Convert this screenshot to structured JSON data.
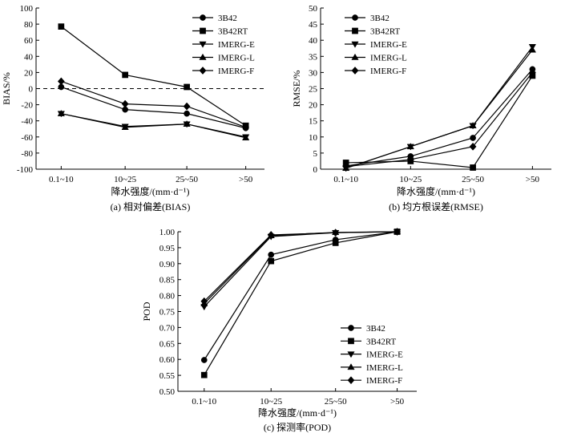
{
  "chart_data": [
    {
      "type": "line",
      "caption": "(a) 相对偏差(BIAS)",
      "xlabel": "降水强度/(mm·d⁻¹)",
      "ylabel": "BIAS/%",
      "categories": [
        "0.1~10",
        "10~25",
        "25~50",
        ">50"
      ],
      "ylim": [
        -100,
        100
      ],
      "yticks": [
        "100",
        "80",
        "60",
        "40",
        "20",
        "0",
        "-20",
        "-40",
        "-60",
        "-80",
        "-100"
      ],
      "legend_position": "top-right",
      "reference_line": 0,
      "series": [
        {
          "name": "3B42",
          "marker": "circle",
          "values": [
            2,
            -26,
            -31,
            -49
          ]
        },
        {
          "name": "3B42RT",
          "marker": "square",
          "values": [
            77,
            17,
            2,
            -46
          ]
        },
        {
          "name": "IMERG-E",
          "marker": "triangle-down",
          "values": [
            -31,
            -47,
            -44,
            -60
          ]
        },
        {
          "name": "IMERG-L",
          "marker": "triangle-up",
          "values": [
            -31,
            -48,
            -44,
            -61
          ]
        },
        {
          "name": "IMERG-F",
          "marker": "diamond",
          "values": [
            9,
            -19,
            -22,
            -48
          ]
        }
      ]
    },
    {
      "type": "line",
      "caption": "(b) 均方根误差(RMSE)",
      "xlabel": "降水强度/(mm·d⁻¹)",
      "ylabel": "RMSE/%",
      "categories": [
        "0.1~10",
        "10~25",
        "25~50",
        ">50"
      ],
      "ylim": [
        0,
        50
      ],
      "yticks": [
        "0",
        "5",
        "10",
        "15",
        "20",
        "25",
        "30",
        "35",
        "40",
        "45",
        "50"
      ],
      "legend_position": "top-left",
      "series": [
        {
          "name": "3B42",
          "marker": "circle",
          "values": [
            1,
            4,
            9.7,
            31
          ]
        },
        {
          "name": "3B42RT",
          "marker": "square",
          "values": [
            2,
            2.5,
            0.5,
            29
          ]
        },
        {
          "name": "IMERG-E",
          "marker": "triangle-down",
          "values": [
            0.3,
            7,
            13.5,
            38
          ]
        },
        {
          "name": "IMERG-L",
          "marker": "triangle-up",
          "values": [
            0.3,
            7,
            13.5,
            37
          ]
        },
        {
          "name": "IMERG-F",
          "marker": "diamond",
          "values": [
            0.8,
            3,
            7,
            30
          ]
        }
      ]
    },
    {
      "type": "line",
      "caption": "(c) 探测率(POD)",
      "xlabel": "降水强度/(mm·d⁻¹)",
      "ylabel": "POD",
      "categories": [
        "0.1~10",
        "10~25",
        "25~50",
        ">50"
      ],
      "ylim": [
        0.5,
        1.0
      ],
      "yticks": [
        "0.50",
        "0.55",
        "0.60",
        "0.65",
        "0.70",
        "0.75",
        "0.80",
        "0.85",
        "0.90",
        "0.95",
        "1.00"
      ],
      "legend_position": "bottom-right",
      "series": [
        {
          "name": "3B42",
          "marker": "circle",
          "values": [
            0.598,
            0.928,
            0.975,
            1.0
          ]
        },
        {
          "name": "3B42RT",
          "marker": "square",
          "values": [
            0.551,
            0.908,
            0.965,
            1.0
          ]
        },
        {
          "name": "IMERG-E",
          "marker": "triangle-down",
          "values": [
            0.765,
            0.985,
            0.997,
            1.0
          ]
        },
        {
          "name": "IMERG-L",
          "marker": "triangle-up",
          "values": [
            0.775,
            0.988,
            0.998,
            1.0
          ]
        },
        {
          "name": "IMERG-F",
          "marker": "diamond",
          "values": [
            0.782,
            0.99,
            0.997,
            1.0
          ]
        }
      ]
    }
  ]
}
